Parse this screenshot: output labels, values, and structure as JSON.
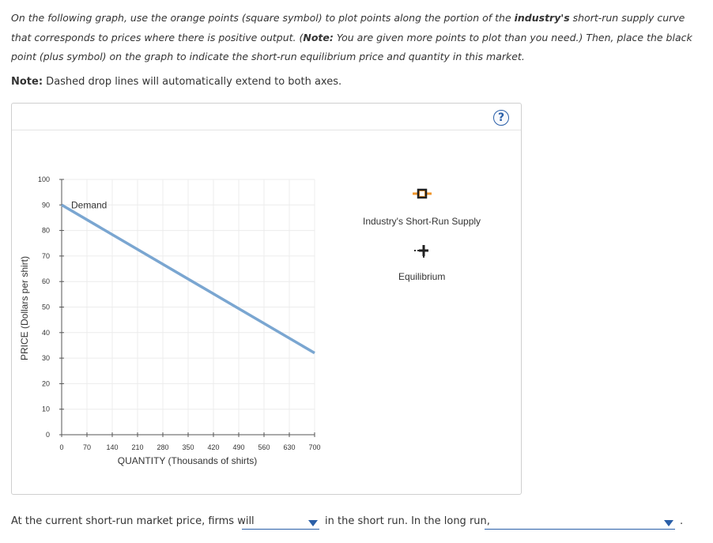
{
  "instructions": {
    "part1": "On the following graph, use the orange points (square symbol) to plot points along the portion of the ",
    "bold1": "industry's",
    "part2": " short-run supply curve that corresponds to prices where there is positive output. (",
    "note_word": "Note:",
    "part3": " You are given more points to plot than you need.) Then, place the black point (plus symbol) on the graph to indicate the short-run equilibrium price and quantity in this market."
  },
  "drop_note": {
    "label": "Note:",
    "text": " Dashed drop lines will automatically extend to both axes."
  },
  "help_label": "?",
  "chart_data": {
    "type": "line",
    "xlabel": "QUANTITY (Thousands of shirts)",
    "ylabel": "PRICE (Dollars per shirt)",
    "xlim": [
      0,
      700
    ],
    "ylim": [
      0,
      100
    ],
    "x_ticks": [
      0,
      70,
      140,
      210,
      280,
      350,
      420,
      490,
      560,
      630,
      700
    ],
    "y_ticks": [
      0,
      10,
      20,
      30,
      40,
      50,
      60,
      70,
      80,
      90,
      100
    ],
    "grid": true,
    "series": [
      {
        "name": "Demand",
        "color": "#7aa6d1",
        "x": [
          0,
          700
        ],
        "y": [
          90,
          32
        ]
      }
    ]
  },
  "palette": {
    "supply_label": "Industry's Short-Run Supply",
    "supply_color": "#f0962a",
    "equilibrium_label": "Equilibrium"
  },
  "bottom": {
    "text1": "At the current short-run market price, firms will",
    "text2": "in the short run. In the long run,",
    "text3": "."
  }
}
